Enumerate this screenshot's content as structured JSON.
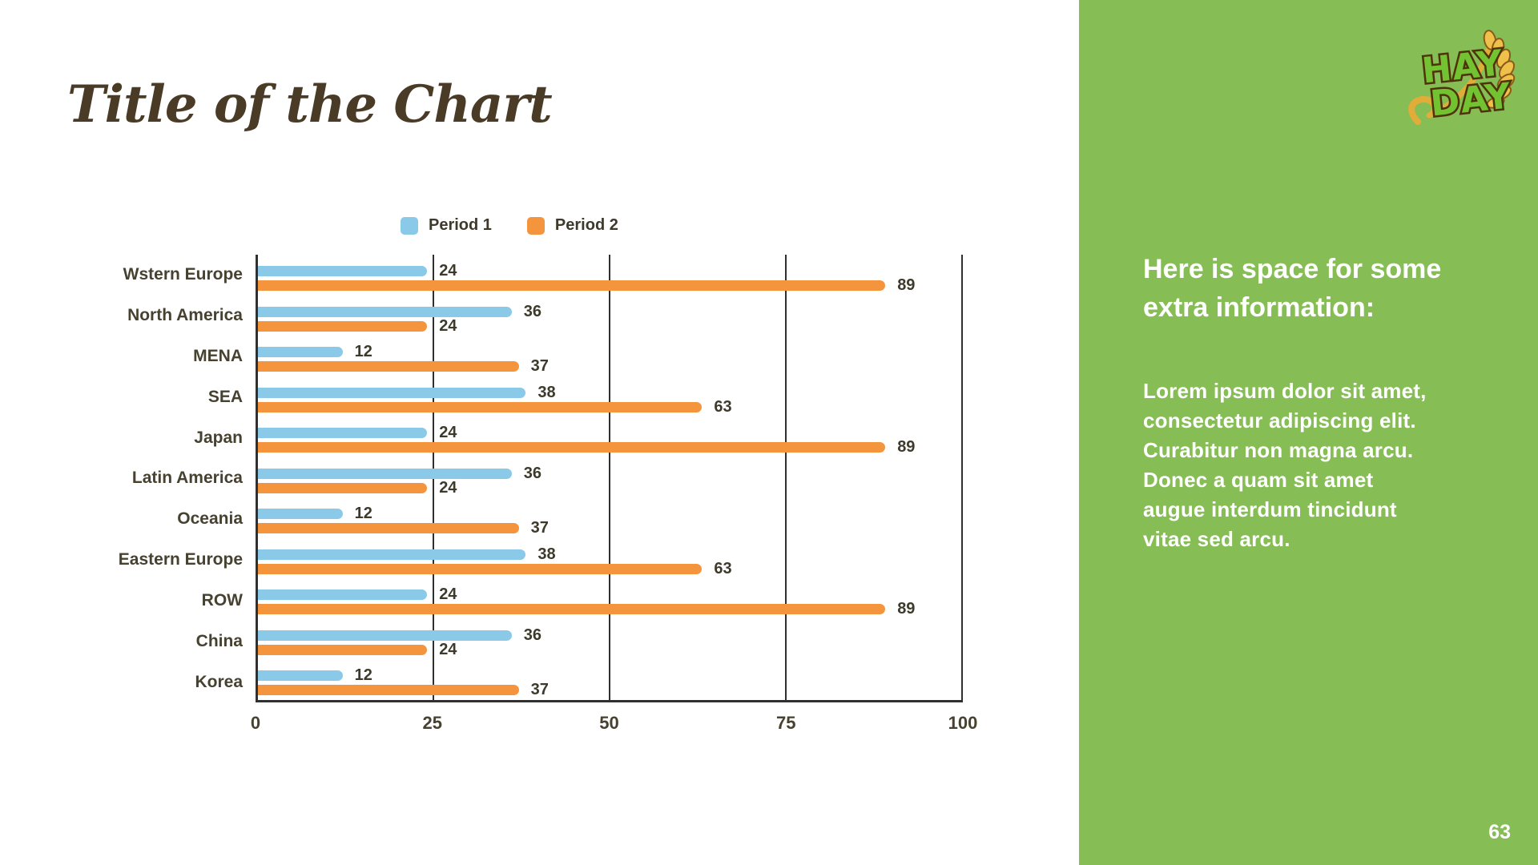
{
  "slide": {
    "title": "Title of the Chart"
  },
  "chart_data": {
    "type": "bar",
    "orientation": "horizontal",
    "title": "Title of the Chart",
    "categories": [
      "Wstern Europe",
      "North America",
      "MENA",
      "SEA",
      "Japan",
      "Latin America",
      "Oceania",
      "Eastern Europe",
      "ROW",
      "China",
      "Korea"
    ],
    "series": [
      {
        "name": "Period 1",
        "color": "#8BC9E9",
        "values": [
          24,
          36,
          12,
          38,
          24,
          36,
          12,
          38,
          24,
          36,
          12
        ]
      },
      {
        "name": "Period 2",
        "color": "#F4953E",
        "values": [
          89,
          24,
          37,
          63,
          89,
          24,
          37,
          63,
          89,
          24,
          37
        ]
      }
    ],
    "xlim": [
      0,
      100
    ],
    "xticks": [
      0,
      25,
      50,
      75,
      100
    ],
    "grid": "vertical",
    "legend_position": "top",
    "value_labels": true
  },
  "sidebar": {
    "heading": "Here is space for some\nextra information:",
    "body": "Lorem ipsum dolor sit amet,\nconsectetur adipiscing elit.\nCurabitur non magna arcu.\nDonec a quam sit amet\naugue interdum tincidunt\nvitae sed arcu.",
    "logo": {
      "line1": "HAY",
      "line2": "DAY"
    },
    "page_number": "63",
    "background_color": "#87BD55"
  },
  "theme": {
    "title_color": "#4A3B27",
    "axis_color": "#303030",
    "label_color": "#474130",
    "period1_color": "#8BC9E9",
    "period2_color": "#F4953E"
  }
}
